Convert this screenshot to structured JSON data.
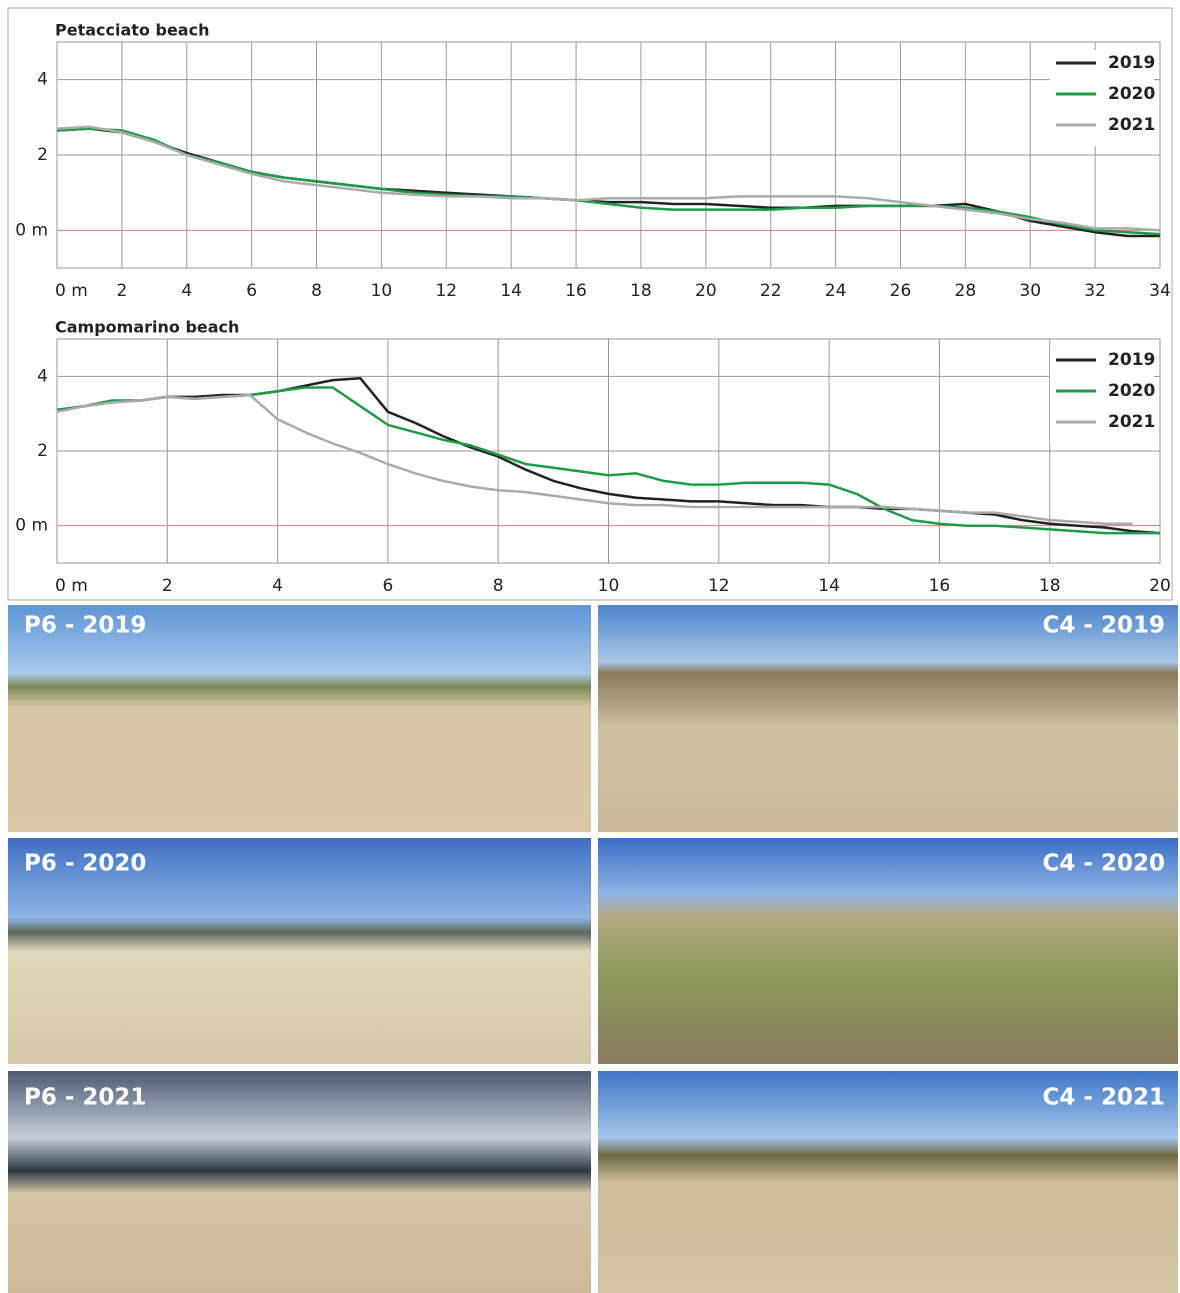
{
  "chart_data": [
    {
      "type": "line",
      "title": "Petacciato beach",
      "x": [
        0,
        1,
        2,
        3,
        4,
        5,
        6,
        7,
        8,
        9,
        10,
        11,
        12,
        13,
        14,
        15,
        16,
        17,
        18,
        19,
        20,
        21,
        22,
        23,
        24,
        25,
        26,
        27,
        28,
        29,
        30,
        31,
        32,
        33,
        34
      ],
      "series": [
        {
          "name": "2019",
          "color": "#222222",
          "values": [
            2.65,
            2.7,
            2.6,
            2.35,
            2.05,
            1.8,
            1.55,
            1.4,
            1.3,
            1.2,
            1.1,
            1.05,
            1.0,
            0.95,
            0.9,
            0.85,
            0.8,
            0.75,
            0.75,
            0.7,
            0.7,
            0.65,
            0.6,
            0.6,
            0.65,
            0.65,
            0.65,
            0.65,
            0.7,
            0.5,
            0.25,
            0.1,
            -0.05,
            -0.15,
            -0.15
          ]
        },
        {
          "name": "2020",
          "color": "#1f9a45",
          "values": [
            2.65,
            2.7,
            2.65,
            2.4,
            2.0,
            1.8,
            1.55,
            1.4,
            1.3,
            1.2,
            1.1,
            1.0,
            0.95,
            0.9,
            0.9,
            0.85,
            0.8,
            0.7,
            0.6,
            0.55,
            0.55,
            0.55,
            0.55,
            0.6,
            0.6,
            0.65,
            0.65,
            0.65,
            0.6,
            0.5,
            0.35,
            0.15,
            0.0,
            -0.05,
            -0.1
          ]
        },
        {
          "name": "2021",
          "color": "#aaaaaa",
          "values": [
            2.7,
            2.75,
            2.6,
            2.35,
            2.0,
            1.75,
            1.5,
            1.3,
            1.2,
            1.1,
            1.0,
            0.95,
            0.9,
            0.9,
            0.85,
            0.85,
            0.8,
            0.85,
            0.85,
            0.85,
            0.85,
            0.9,
            0.9,
            0.9,
            0.9,
            0.85,
            0.75,
            0.65,
            0.55,
            0.45,
            0.3,
            0.2,
            0.05,
            0.05,
            0.0
          ]
        }
      ],
      "xlim": [
        0,
        34
      ],
      "xticks": [
        {
          "value": 0,
          "label": "0 m"
        },
        2,
        4,
        6,
        8,
        10,
        12,
        14,
        16,
        18,
        20,
        22,
        24,
        26,
        28,
        30,
        32,
        34
      ],
      "ylim": [
        -1,
        5
      ],
      "yticks": [
        {
          "value": 0,
          "label": "0 m"
        },
        2,
        4
      ],
      "grid": true,
      "legend": "upper right"
    },
    {
      "type": "line",
      "title": "Campomarino beach",
      "x": [
        0,
        0.5,
        1,
        1.5,
        2,
        2.5,
        3,
        3.5,
        4,
        4.5,
        5,
        5.5,
        6,
        6.5,
        7,
        7.5,
        8,
        8.5,
        9,
        9.5,
        10,
        10.5,
        11,
        11.5,
        12,
        12.5,
        13,
        13.5,
        14,
        14.5,
        15,
        15.5,
        16,
        16.5,
        17,
        17.5,
        18,
        18.5,
        19,
        19.5,
        20
      ],
      "series": [
        {
          "name": "2019",
          "color": "#222222",
          "values": [
            3.1,
            3.2,
            3.35,
            3.35,
            3.45,
            3.45,
            3.5,
            3.5,
            3.6,
            3.75,
            3.9,
            3.95,
            3.05,
            2.75,
            2.4,
            2.1,
            1.85,
            1.5,
            1.2,
            1.0,
            0.85,
            0.75,
            0.7,
            0.65,
            0.65,
            0.6,
            0.55,
            0.55,
            0.5,
            0.5,
            0.45,
            0.45,
            0.4,
            0.35,
            0.3,
            0.15,
            0.05,
            0.0,
            -0.05,
            -0.15,
            -0.2
          ]
        },
        {
          "name": "2020",
          "color": "#1f9a45",
          "values": [
            3.1,
            3.2,
            3.35,
            3.35,
            3.45,
            3.4,
            3.45,
            3.5,
            3.6,
            3.7,
            3.7,
            3.2,
            2.7,
            2.5,
            2.3,
            2.15,
            1.9,
            1.65,
            1.55,
            1.45,
            1.35,
            1.4,
            1.2,
            1.1,
            1.1,
            1.15,
            1.15,
            1.15,
            1.1,
            0.85,
            0.45,
            0.15,
            0.05,
            0.0,
            0.0,
            -0.05,
            -0.1,
            -0.15,
            -0.2,
            -0.2,
            -0.2
          ]
        },
        {
          "name": "2021",
          "color": "#aaaaaa",
          "values": [
            3.05,
            3.2,
            3.3,
            3.35,
            3.45,
            3.4,
            3.45,
            3.5,
            2.85,
            2.5,
            2.2,
            1.95,
            1.65,
            1.4,
            1.2,
            1.05,
            0.95,
            0.9,
            0.8,
            0.7,
            0.6,
            0.55,
            0.55,
            0.5,
            0.5,
            0.5,
            0.5,
            0.5,
            0.5,
            0.5,
            0.5,
            0.45,
            0.4,
            0.35,
            0.35,
            0.25,
            0.15,
            0.1,
            0.05,
            0.05,
            null
          ]
        }
      ],
      "xlim": [
        0,
        20
      ],
      "xticks": [
        {
          "value": 0,
          "label": "0 m"
        },
        2,
        4,
        6,
        8,
        10,
        12,
        14,
        16,
        18,
        20
      ],
      "ylim": [
        -1,
        5
      ],
      "yticks": [
        {
          "value": 0,
          "label": "0 m"
        },
        2,
        4
      ],
      "grid": true,
      "legend": "upper right"
    }
  ],
  "photos": [
    "P6 - 2019",
    "C4 - 2019",
    "P6 - 2020",
    "C4 - 2020",
    "P6 - 2021",
    "C4 - 2021"
  ]
}
